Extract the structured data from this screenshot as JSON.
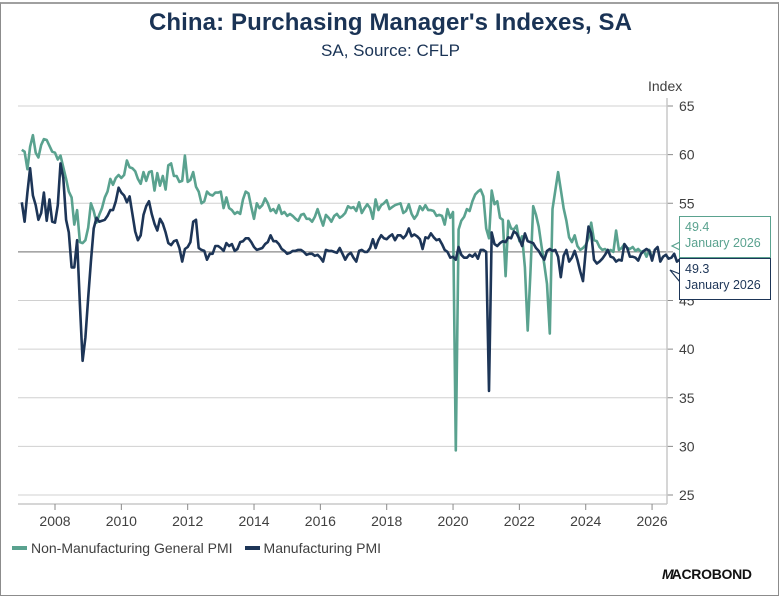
{
  "chart_data": {
    "type": "line",
    "title": "China: Purchasing Manager's Indexes, SA",
    "subtitle": "SA, Source: CFLP",
    "xlabel": "",
    "ylabel": "Index",
    "xlim": [
      2007.0,
      2026.5
    ],
    "ylim": [
      25,
      65
    ],
    "yticks": [
      25,
      30,
      35,
      40,
      45,
      50,
      55,
      60,
      65
    ],
    "xticks": [
      "2008",
      "2010",
      "2012",
      "2014",
      "2016",
      "2018",
      "2020",
      "2022",
      "2024",
      "2026"
    ],
    "reference_line": 50,
    "grid": true,
    "legend_position": "bottom-left",
    "x_start": 2007.0,
    "x_step": 0.083333,
    "series": [
      {
        "name": "Non-Manufacturing General PMI",
        "color": "#5aa28f",
        "last_value": "49.4",
        "last_date": "January 2026",
        "values": [
          60.5,
          60.3,
          58.5,
          60.8,
          62.0,
          60.2,
          59.7,
          61.0,
          61.6,
          61.5,
          60.9,
          60.3,
          60.2,
          59.5,
          59.9,
          58.7,
          57.5,
          56.2,
          55.6,
          52.8,
          54.3,
          51.0,
          50.9,
          51.2,
          52.5,
          55.0,
          54.2,
          53.0,
          53.8,
          54.5,
          55.6,
          56.2,
          57.5,
          56.9,
          57.6,
          57.9,
          57.6,
          57.9,
          59.4,
          58.7,
          58.6,
          58.3,
          57.5,
          57.0,
          58.2,
          57.3,
          58.2,
          58.3,
          56.3,
          58.1,
          56.8,
          57.8,
          56.4,
          58.9,
          59.1,
          57.8,
          57.8,
          57.2,
          57.3,
          59.9,
          57.2,
          57.4,
          58.2,
          56.7,
          56.2,
          55.0,
          55.2,
          56.2,
          55.9,
          55.8,
          56.1,
          56.1,
          56.2,
          54.5,
          55.6,
          54.5,
          54.3,
          53.9,
          54.1,
          53.9,
          55.4,
          56.2,
          56.0,
          54.6,
          53.4,
          55.0,
          54.5,
          54.8,
          55.5,
          55.0,
          54.2,
          54.4,
          54.0,
          54.8,
          53.9,
          54.1,
          53.7,
          53.9,
          53.7,
          53.4,
          53.2,
          53.8,
          53.9,
          53.4,
          53.4,
          53.1,
          53.6,
          54.4,
          53.5,
          52.7,
          53.8,
          53.5,
          53.1,
          53.7,
          53.9,
          53.5,
          53.7,
          54.0,
          54.7,
          54.5,
          54.6,
          54.2,
          55.1,
          54.0,
          54.5,
          54.9,
          54.5,
          53.4,
          55.4,
          54.3,
          54.8,
          55.0,
          55.3,
          54.4,
          54.6,
          54.8,
          54.9,
          55.0,
          54.0,
          54.2,
          54.9,
          53.9,
          53.4,
          53.8,
          54.7,
          54.3,
          54.8,
          54.3,
          54.3,
          54.2,
          53.7,
          53.8,
          53.7,
          52.8,
          54.4,
          53.5,
          54.1,
          29.6,
          52.3,
          53.2,
          53.6,
          54.4,
          54.2,
          55.2,
          55.9,
          56.2,
          56.4,
          55.7,
          52.4,
          51.4,
          56.3,
          54.9,
          55.2,
          53.5,
          53.3,
          47.5,
          53.2,
          52.4,
          52.3,
          52.7,
          51.1,
          51.6,
          48.4,
          41.9,
          47.8,
          54.7,
          53.8,
          52.6,
          50.6,
          48.7,
          46.7,
          41.6,
          54.4,
          56.3,
          58.2,
          56.4,
          54.5,
          53.2,
          51.5,
          51.0,
          51.7,
          50.6,
          50.2,
          50.4,
          50.7,
          51.4,
          53.0,
          51.2,
          51.1,
          50.5,
          50.2,
          50.3,
          50.0,
          50.2,
          50.0,
          52.2,
          50.2,
          50.4,
          50.8,
          50.4,
          50.3,
          50.5,
          50.1,
          50.3,
          50.0,
          50.1,
          49.5,
          50.2,
          49.4
        ]
      },
      {
        "name": "Manufacturing PMI",
        "color": "#1d3557",
        "last_value": "49.3",
        "last_date": "January 2026",
        "values": [
          55.1,
          53.1,
          56.1,
          58.6,
          55.8,
          54.8,
          53.3,
          54.0,
          56.1,
          53.2,
          55.4,
          53.1,
          53.0,
          54.8,
          59.1,
          57.6,
          53.3,
          52.0,
          48.4,
          48.4,
          51.2,
          44.6,
          38.8,
          41.2,
          45.3,
          49.0,
          52.4,
          53.5,
          53.1,
          53.2,
          53.3,
          53.7,
          54.3,
          54.3,
          55.2,
          56.6,
          56.1,
          55.8,
          55.1,
          55.7,
          53.9,
          52.1,
          51.2,
          51.7,
          53.8,
          54.7,
          55.2,
          53.9,
          52.9,
          52.2,
          53.4,
          52.9,
          52.0,
          50.9,
          50.7,
          51.1,
          51.2,
          50.4,
          49.0,
          50.3,
          50.5,
          51.0,
          53.1,
          53.3,
          50.4,
          50.2,
          50.1,
          49.2,
          49.8,
          49.8,
          50.6,
          50.6,
          50.4,
          50.1,
          50.9,
          50.6,
          50.8,
          50.1,
          50.3,
          51.0,
          51.1,
          51.4,
          51.4,
          51.0,
          50.5,
          50.2,
          50.3,
          50.4,
          50.8,
          51.0,
          51.7,
          51.1,
          51.1,
          50.8,
          50.3,
          50.1,
          49.8,
          49.9,
          50.1,
          50.1,
          50.2,
          50.2,
          50.0,
          49.7,
          49.8,
          49.8,
          49.6,
          49.7,
          49.4,
          49.0,
          50.2,
          50.1,
          50.1,
          50.0,
          49.9,
          50.4,
          49.8,
          49.2,
          49.7,
          49.9,
          49.4,
          49.0,
          50.1,
          50.2,
          50.0,
          50.0,
          50.4,
          51.3,
          50.4,
          51.2,
          51.7,
          51.4,
          51.3,
          51.6,
          51.8,
          51.2,
          51.7,
          51.7,
          51.4,
          51.7,
          52.4,
          51.6,
          51.8,
          51.6,
          51.3,
          50.3,
          51.5,
          51.4,
          51.9,
          51.5,
          51.2,
          51.3,
          50.8,
          50.2,
          50.0,
          49.4,
          49.5,
          49.2,
          50.5,
          49.7,
          49.4,
          49.4,
          49.7,
          49.5,
          49.8,
          49.3,
          50.2,
          50.2,
          50.0,
          35.7,
          52.0,
          50.8,
          50.6,
          50.9,
          51.1,
          51.0,
          51.5,
          51.4,
          52.1,
          51.9,
          51.3,
          50.6,
          51.9,
          51.1,
          51.0,
          50.9,
          50.4,
          50.1,
          49.6,
          49.2,
          50.1,
          50.3,
          50.1,
          50.2,
          49.5,
          47.4,
          49.6,
          50.2,
          49.0,
          49.4,
          50.1,
          49.2,
          48.0,
          47.0,
          50.1,
          52.6,
          51.9,
          49.2,
          48.8,
          49.0,
          49.3,
          49.7,
          50.2,
          49.5,
          49.4,
          49.0,
          49.2,
          49.1,
          50.8,
          50.4,
          49.5,
          49.5,
          49.4,
          49.1,
          49.8,
          50.1,
          50.3,
          50.1,
          49.1,
          50.2,
          50.5,
          49.0,
          49.5,
          49.7,
          49.3,
          49.4,
          49.8,
          49.0,
          49.2,
          49.2,
          49.3
        ]
      }
    ]
  },
  "yaxis": {
    "unit_label": "Index"
  },
  "legend": [
    {
      "label": "Non-Manufacturing General PMI",
      "color": "#5aa28f"
    },
    {
      "label": "Manufacturing PMI",
      "color": "#1d3557"
    }
  ],
  "callouts": [
    {
      "value": "49.4",
      "date": "January 2026",
      "color": "#5aa28f"
    },
    {
      "value": "49.3",
      "date": "January 2026",
      "color": "#1d3557"
    }
  ],
  "branding": {
    "logo_prefix": "M",
    "logo_text": "ACROBOND"
  }
}
